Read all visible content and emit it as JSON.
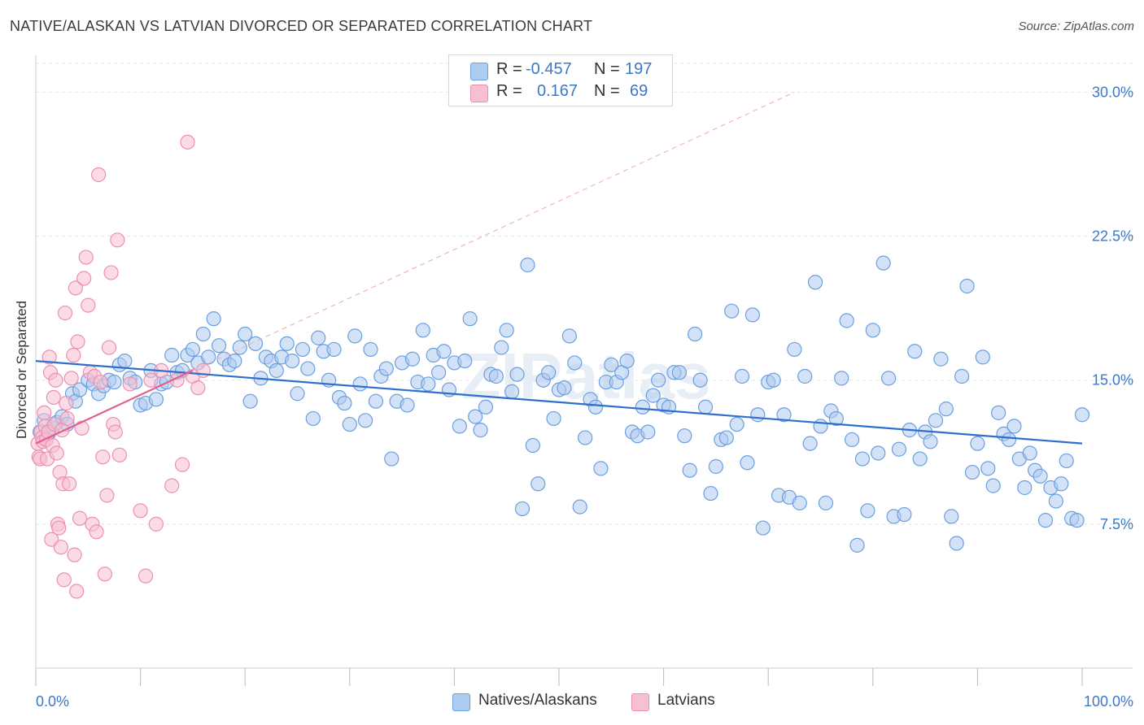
{
  "header": {
    "title": "NATIVE/ALASKAN VS LATVIAN DIVORCED OR SEPARATED CORRELATION CHART",
    "source": "Source: ZipAtlas.com"
  },
  "legend": {
    "rows": [
      {
        "r_label": "R =",
        "r_value": "-0.457",
        "n_label": "N =",
        "n_value": "197"
      },
      {
        "r_label": "R =",
        "r_value": "0.167",
        "n_label": "N =",
        "n_value": "69"
      }
    ]
  },
  "colors": {
    "blue_fill": "#aecbf0",
    "blue_stroke": "#6b9fe0",
    "blue_line": "#2f6fcc",
    "pink_fill": "#f7c0d2",
    "pink_stroke": "#ee8fb0",
    "pink_line": "#e0608e",
    "tick_label": "#3b78c9",
    "grid": "#e4e4e4"
  },
  "watermark": "ZIPatlas",
  "chart_data": {
    "type": "scatter",
    "title": "NATIVE/ALASKAN VS LATVIAN DIVORCED OR SEPARATED CORRELATION CHART",
    "xlabel": "",
    "ylabel": "Divorced or Separated",
    "xlim": [
      0,
      100
    ],
    "ylim": [
      0,
      31.5
    ],
    "x_tick_labels": [
      "0.0%",
      "100.0%"
    ],
    "y_ticks": [
      7.5,
      15.0,
      22.5,
      30.0
    ],
    "y_tick_labels": [
      "7.5%",
      "15.0%",
      "22.5%",
      "30.0%"
    ],
    "grid": true,
    "legend_position": "bottom",
    "series": [
      {
        "name": "Natives/Alaskans",
        "color": "#6b9fe0",
        "r": -0.457,
        "n": 197,
        "trend": {
          "x": [
            0,
            100
          ],
          "y": [
            16.0,
            11.7
          ]
        },
        "points": [
          [
            0.4,
            12.3
          ],
          [
            0.8,
            12.9
          ],
          [
            1.2,
            12.2
          ],
          [
            1.6,
            12.5
          ],
          [
            2.0,
            12.8
          ],
          [
            2.5,
            13.1
          ],
          [
            3.0,
            12.7
          ],
          [
            3.5,
            14.3
          ],
          [
            3.8,
            13.9
          ],
          [
            4.2,
            14.5
          ],
          [
            5.0,
            15.0
          ],
          [
            5.5,
            14.8
          ],
          [
            6.0,
            14.3
          ],
          [
            6.5,
            14.7
          ],
          [
            7.0,
            15.0
          ],
          [
            7.5,
            14.9
          ],
          [
            8.0,
            15.8
          ],
          [
            8.5,
            16.0
          ],
          [
            9.0,
            15.1
          ],
          [
            9.5,
            14.9
          ],
          [
            10.0,
            13.7
          ],
          [
            10.5,
            13.8
          ],
          [
            11.0,
            15.5
          ],
          [
            11.5,
            14.0
          ],
          [
            12.0,
            14.8
          ],
          [
            12.5,
            14.9
          ],
          [
            13.0,
            16.3
          ],
          [
            13.5,
            15.4
          ],
          [
            14.0,
            15.5
          ],
          [
            14.5,
            16.3
          ],
          [
            15.0,
            16.6
          ],
          [
            15.5,
            15.9
          ],
          [
            16.0,
            17.4
          ],
          [
            16.5,
            16.2
          ],
          [
            17.0,
            18.2
          ],
          [
            17.5,
            16.8
          ],
          [
            18.0,
            16.1
          ],
          [
            18.5,
            15.8
          ],
          [
            19.0,
            16.0
          ],
          [
            19.5,
            16.7
          ],
          [
            20.0,
            17.4
          ],
          [
            20.5,
            13.9
          ],
          [
            21.0,
            16.9
          ],
          [
            21.5,
            15.1
          ],
          [
            22.0,
            16.2
          ],
          [
            22.5,
            16.0
          ],
          [
            23.0,
            15.5
          ],
          [
            23.5,
            16.2
          ],
          [
            24.0,
            16.9
          ],
          [
            24.5,
            16.0
          ],
          [
            25.0,
            14.3
          ],
          [
            25.5,
            16.6
          ],
          [
            26.0,
            15.6
          ],
          [
            26.5,
            13.0
          ],
          [
            27.0,
            17.2
          ],
          [
            27.5,
            16.5
          ],
          [
            28.0,
            15.0
          ],
          [
            28.5,
            16.6
          ],
          [
            29.0,
            14.1
          ],
          [
            29.5,
            13.8
          ],
          [
            30.0,
            12.7
          ],
          [
            30.5,
            17.3
          ],
          [
            31.0,
            14.8
          ],
          [
            31.5,
            12.9
          ],
          [
            32.0,
            16.6
          ],
          [
            32.5,
            13.9
          ],
          [
            33.0,
            15.2
          ],
          [
            33.5,
            15.6
          ],
          [
            34.0,
            10.9
          ],
          [
            34.5,
            13.9
          ],
          [
            35.0,
            15.9
          ],
          [
            35.5,
            13.7
          ],
          [
            36.0,
            16.1
          ],
          [
            36.5,
            14.9
          ],
          [
            37.0,
            17.6
          ],
          [
            37.5,
            14.8
          ],
          [
            38.0,
            16.3
          ],
          [
            38.5,
            15.4
          ],
          [
            39.0,
            16.5
          ],
          [
            39.5,
            14.5
          ],
          [
            40.0,
            15.9
          ],
          [
            40.5,
            12.6
          ],
          [
            41.0,
            16.0
          ],
          [
            41.5,
            18.2
          ],
          [
            42.0,
            13.1
          ],
          [
            42.5,
            12.4
          ],
          [
            43.0,
            13.6
          ],
          [
            43.5,
            15.3
          ],
          [
            44.0,
            15.2
          ],
          [
            44.5,
            16.7
          ],
          [
            45.0,
            17.6
          ],
          [
            45.5,
            14.4
          ],
          [
            46.0,
            15.3
          ],
          [
            46.5,
            8.3
          ],
          [
            47.0,
            21.0
          ],
          [
            47.5,
            11.6
          ],
          [
            48.0,
            9.6
          ],
          [
            48.5,
            15.0
          ],
          [
            49.0,
            15.4
          ],
          [
            49.5,
            13.0
          ],
          [
            50.0,
            14.5
          ],
          [
            50.5,
            14.6
          ],
          [
            51.0,
            17.3
          ],
          [
            51.5,
            15.9
          ],
          [
            52.0,
            8.4
          ],
          [
            52.5,
            12.0
          ],
          [
            53.0,
            14.0
          ],
          [
            53.5,
            13.6
          ],
          [
            54.0,
            10.4
          ],
          [
            54.5,
            14.9
          ],
          [
            55.0,
            15.8
          ],
          [
            55.5,
            14.9
          ],
          [
            56.0,
            15.4
          ],
          [
            56.5,
            16.0
          ],
          [
            57.0,
            12.3
          ],
          [
            57.5,
            12.1
          ],
          [
            58.0,
            13.6
          ],
          [
            58.5,
            12.3
          ],
          [
            59.0,
            14.2
          ],
          [
            59.5,
            15.0
          ],
          [
            60.0,
            13.7
          ],
          [
            60.5,
            13.6
          ],
          [
            61.0,
            15.4
          ],
          [
            61.5,
            15.4
          ],
          [
            62.0,
            12.1
          ],
          [
            62.5,
            10.3
          ],
          [
            63.0,
            17.4
          ],
          [
            63.5,
            15.0
          ],
          [
            64.0,
            13.6
          ],
          [
            64.5,
            9.1
          ],
          [
            65.0,
            10.5
          ],
          [
            65.5,
            11.9
          ],
          [
            66.0,
            12.0
          ],
          [
            66.5,
            18.6
          ],
          [
            67.0,
            12.7
          ],
          [
            67.5,
            15.2
          ],
          [
            68.0,
            10.7
          ],
          [
            68.5,
            18.4
          ],
          [
            69.0,
            13.2
          ],
          [
            69.5,
            7.3
          ],
          [
            70.0,
            14.9
          ],
          [
            70.5,
            15.0
          ],
          [
            71.0,
            9.0
          ],
          [
            71.5,
            13.2
          ],
          [
            72.0,
            8.9
          ],
          [
            72.5,
            16.6
          ],
          [
            73.0,
            8.6
          ],
          [
            73.5,
            15.2
          ],
          [
            74.0,
            11.7
          ],
          [
            74.5,
            20.1
          ],
          [
            75.0,
            12.6
          ],
          [
            75.5,
            8.6
          ],
          [
            76.0,
            13.4
          ],
          [
            76.5,
            13.0
          ],
          [
            77.0,
            15.1
          ],
          [
            77.5,
            18.1
          ],
          [
            78.0,
            11.9
          ],
          [
            78.5,
            6.4
          ],
          [
            79.0,
            10.9
          ],
          [
            79.5,
            8.2
          ],
          [
            80.0,
            17.6
          ],
          [
            80.5,
            11.2
          ],
          [
            81.0,
            21.1
          ],
          [
            81.5,
            15.1
          ],
          [
            82.0,
            7.9
          ],
          [
            82.5,
            11.4
          ],
          [
            83.0,
            8.0
          ],
          [
            83.5,
            12.4
          ],
          [
            84.0,
            16.5
          ],
          [
            84.5,
            10.9
          ],
          [
            85.0,
            12.3
          ],
          [
            85.5,
            11.8
          ],
          [
            86.0,
            12.9
          ],
          [
            86.5,
            16.1
          ],
          [
            87.0,
            13.5
          ],
          [
            87.5,
            7.9
          ],
          [
            88.0,
            6.5
          ],
          [
            88.5,
            15.2
          ],
          [
            89.0,
            19.9
          ],
          [
            89.5,
            10.2
          ],
          [
            90.0,
            11.7
          ],
          [
            90.5,
            16.2
          ],
          [
            91.0,
            10.4
          ],
          [
            91.5,
            9.5
          ],
          [
            92.0,
            13.3
          ],
          [
            92.5,
            12.2
          ],
          [
            93.0,
            11.9
          ],
          [
            93.5,
            12.6
          ],
          [
            94.0,
            10.9
          ],
          [
            94.5,
            9.4
          ],
          [
            95.0,
            11.2
          ],
          [
            95.5,
            10.3
          ],
          [
            96.0,
            10.0
          ],
          [
            96.5,
            7.7
          ],
          [
            97.0,
            9.4
          ],
          [
            97.5,
            8.7
          ],
          [
            98.0,
            9.6
          ],
          [
            98.5,
            10.8
          ],
          [
            99.0,
            7.8
          ],
          [
            99.5,
            7.7
          ],
          [
            100.0,
            13.2
          ]
        ]
      },
      {
        "name": "Latvians",
        "color": "#ee8fb0",
        "r": 0.167,
        "n": 69,
        "trend": {
          "x": [
            0,
            15
          ],
          "y": [
            11.7,
            15.5
          ]
        },
        "trend_extension": {
          "x": [
            15,
            72.5
          ],
          "y": [
            15.5,
            30.0
          ]
        },
        "points": [
          [
            0.2,
            11.7
          ],
          [
            0.3,
            11.0
          ],
          [
            0.4,
            10.9
          ],
          [
            0.5,
            12.3
          ],
          [
            0.6,
            12.0
          ],
          [
            0.7,
            11.8
          ],
          [
            0.8,
            13.3
          ],
          [
            0.9,
            12.6
          ],
          [
            1.0,
            11.9
          ],
          [
            1.1,
            10.9
          ],
          [
            1.2,
            12.3
          ],
          [
            1.3,
            16.2
          ],
          [
            1.4,
            15.4
          ],
          [
            1.5,
            6.7
          ],
          [
            1.6,
            11.6
          ],
          [
            1.7,
            14.1
          ],
          [
            1.8,
            12.7
          ],
          [
            1.9,
            15.0
          ],
          [
            2.0,
            11.2
          ],
          [
            2.1,
            7.5
          ],
          [
            2.2,
            7.3
          ],
          [
            2.3,
            10.2
          ],
          [
            2.4,
            6.3
          ],
          [
            2.5,
            12.4
          ],
          [
            2.6,
            9.6
          ],
          [
            2.7,
            4.6
          ],
          [
            2.8,
            18.5
          ],
          [
            2.9,
            13.8
          ],
          [
            3.0,
            13.0
          ],
          [
            3.2,
            9.6
          ],
          [
            3.4,
            15.1
          ],
          [
            3.6,
            16.3
          ],
          [
            3.7,
            5.9
          ],
          [
            3.8,
            19.8
          ],
          [
            3.9,
            4.0
          ],
          [
            4.0,
            17.0
          ],
          [
            4.2,
            7.8
          ],
          [
            4.4,
            12.5
          ],
          [
            4.6,
            20.3
          ],
          [
            4.8,
            21.4
          ],
          [
            5.0,
            18.9
          ],
          [
            5.2,
            15.4
          ],
          [
            5.4,
            7.5
          ],
          [
            5.6,
            15.2
          ],
          [
            5.8,
            7.1
          ],
          [
            6.0,
            25.7
          ],
          [
            6.2,
            14.9
          ],
          [
            6.4,
            11.0
          ],
          [
            6.6,
            4.9
          ],
          [
            6.8,
            9.0
          ],
          [
            7.0,
            16.7
          ],
          [
            7.2,
            20.6
          ],
          [
            7.4,
            12.7
          ],
          [
            7.6,
            12.3
          ],
          [
            7.8,
            22.3
          ],
          [
            8.0,
            11.1
          ],
          [
            9.0,
            14.8
          ],
          [
            10.0,
            8.2
          ],
          [
            10.5,
            4.8
          ],
          [
            11.0,
            15.0
          ],
          [
            11.5,
            7.5
          ],
          [
            12.0,
            15.5
          ],
          [
            13.0,
            9.5
          ],
          [
            14.0,
            10.6
          ],
          [
            14.5,
            27.4
          ],
          [
            15.0,
            15.2
          ],
          [
            15.5,
            14.6
          ],
          [
            16.0,
            15.5
          ],
          [
            13.5,
            15.0
          ]
        ]
      }
    ]
  },
  "axes": {
    "y_ticks": [
      {
        "value": 7.5,
        "label": "7.5%"
      },
      {
        "value": 15.0,
        "label": "15.0%"
      },
      {
        "value": 22.5,
        "label": "22.5%"
      },
      {
        "value": 30.0,
        "label": "30.0%"
      }
    ],
    "x_min_label": "0.0%",
    "x_max_label": "100.0%",
    "y_axis_label": "Divorced or Separated"
  },
  "bottom_legend": {
    "items": [
      {
        "label": "Natives/Alaskans"
      },
      {
        "label": "Latvians"
      }
    ]
  }
}
